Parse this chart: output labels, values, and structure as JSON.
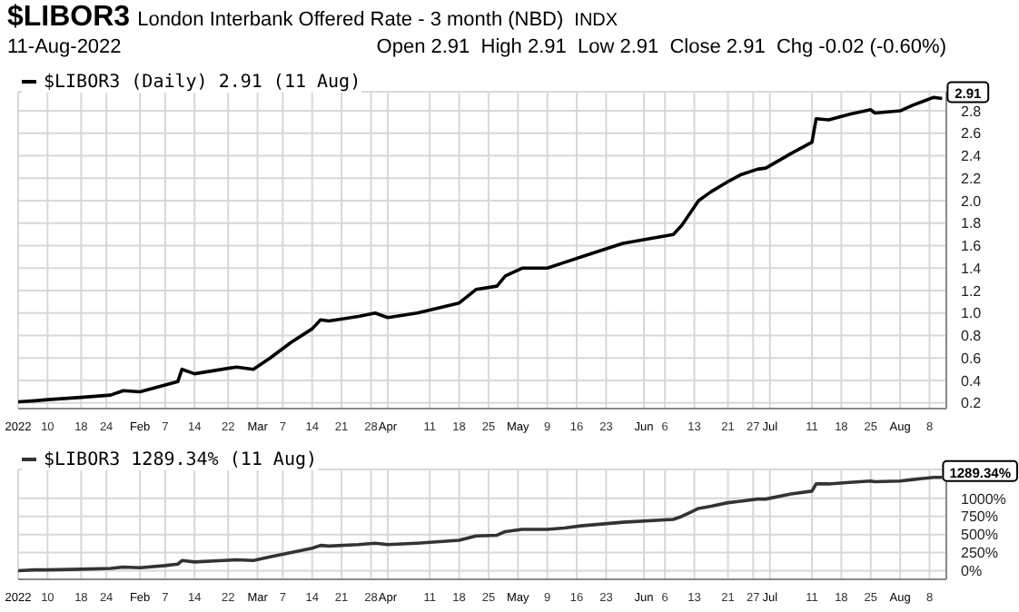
{
  "chart_data": [
    {
      "type": "line",
      "title": "$LIBOR3",
      "subtitle": "London Interbank Offered Rate - 3 month (NBD)",
      "annotations": [
        "INDX",
        "11-Aug-2022",
        "Open 2.91  High 2.91  Low 2.91  Close 2.91  Chg -0.02 (-0.60%)",
        {
          "text": "2.91",
          "x": "2022-08-11",
          "y": 2.91
        }
      ],
      "series": [
        {
          "name": "$LIBOR3 (Daily) 2.91 (11 Aug)",
          "color": "#000000",
          "x": [
            "2022-01-03",
            "2022-01-07",
            "2022-01-10",
            "2022-01-18",
            "2022-01-25",
            "2022-01-28",
            "2022-02-01",
            "2022-02-07",
            "2022-02-10",
            "2022-02-11",
            "2022-02-14",
            "2022-02-24",
            "2022-02-28",
            "2022-03-04",
            "2022-03-09",
            "2022-03-14",
            "2022-03-16",
            "2022-03-18",
            "2022-03-25",
            "2022-03-29",
            "2022-04-01",
            "2022-04-08",
            "2022-04-18",
            "2022-04-22",
            "2022-04-27",
            "2022-04-29",
            "2022-05-03",
            "2022-05-09",
            "2022-05-13",
            "2022-05-17",
            "2022-05-27",
            "2022-06-08",
            "2022-06-10",
            "2022-06-14",
            "2022-06-17",
            "2022-06-21",
            "2022-06-24",
            "2022-06-28",
            "2022-06-30",
            "2022-07-06",
            "2022-07-11",
            "2022-07-12",
            "2022-07-15",
            "2022-07-20",
            "2022-07-25",
            "2022-07-26",
            "2022-08-01",
            "2022-08-04",
            "2022-08-09",
            "2022-08-11"
          ],
          "values": [
            0.21,
            0.22,
            0.23,
            0.25,
            0.27,
            0.31,
            0.3,
            0.36,
            0.39,
            0.5,
            0.46,
            0.52,
            0.5,
            0.6,
            0.74,
            0.86,
            0.94,
            0.93,
            0.97,
            1.0,
            0.96,
            1.0,
            1.09,
            1.21,
            1.24,
            1.33,
            1.4,
            1.4,
            1.45,
            1.5,
            1.62,
            1.7,
            1.78,
            2.0,
            2.08,
            2.17,
            2.23,
            2.28,
            2.29,
            2.42,
            2.52,
            2.73,
            2.72,
            2.77,
            2.81,
            2.78,
            2.8,
            2.85,
            2.92,
            2.91
          ]
        }
      ],
      "xlim": [
        "2022-01-03",
        "2022-08-12"
      ],
      "xticks": [
        {
          "value": "2022-01-03",
          "label": "2022"
        },
        {
          "value": "2022-01-10",
          "label": "10"
        },
        {
          "value": "2022-01-18",
          "label": "18"
        },
        {
          "value": "2022-01-24",
          "label": "24"
        },
        {
          "value": "2022-02-01",
          "label": "Feb"
        },
        {
          "value": "2022-02-07",
          "label": "7"
        },
        {
          "value": "2022-02-14",
          "label": "14"
        },
        {
          "value": "2022-02-22",
          "label": "22"
        },
        {
          "value": "2022-03-01",
          "label": "Mar"
        },
        {
          "value": "2022-03-07",
          "label": "7"
        },
        {
          "value": "2022-03-14",
          "label": "14"
        },
        {
          "value": "2022-03-21",
          "label": "21"
        },
        {
          "value": "2022-03-28",
          "label": "28"
        },
        {
          "value": "2022-04-01",
          "label": "Apr"
        },
        {
          "value": "2022-04-11",
          "label": "11"
        },
        {
          "value": "2022-04-18",
          "label": "18"
        },
        {
          "value": "2022-04-25",
          "label": "25"
        },
        {
          "value": "2022-05-02",
          "label": "May"
        },
        {
          "value": "2022-05-09",
          "label": "9"
        },
        {
          "value": "2022-05-16",
          "label": "16"
        },
        {
          "value": "2022-05-23",
          "label": "23"
        },
        {
          "value": "2022-06-01",
          "label": "Jun"
        },
        {
          "value": "2022-06-06",
          "label": "6"
        },
        {
          "value": "2022-06-13",
          "label": "13"
        },
        {
          "value": "2022-06-21",
          "label": "21"
        },
        {
          "value": "2022-06-27",
          "label": "27"
        },
        {
          "value": "2022-07-01",
          "label": "Jul"
        },
        {
          "value": "2022-07-11",
          "label": "11"
        },
        {
          "value": "2022-07-18",
          "label": "18"
        },
        {
          "value": "2022-07-25",
          "label": "25"
        },
        {
          "value": "2022-08-01",
          "label": "Aug"
        },
        {
          "value": "2022-08-08",
          "label": "8"
        }
      ],
      "ylim": [
        0.15,
        2.97
      ],
      "yticks": [
        {
          "value": 0.2,
          "label": "0.2"
        },
        {
          "value": 0.4,
          "label": "0.4"
        },
        {
          "value": 0.6,
          "label": "0.6"
        },
        {
          "value": 0.8,
          "label": "0.8"
        },
        {
          "value": 1,
          "label": "1.0"
        },
        {
          "value": 1.2,
          "label": "1.2"
        },
        {
          "value": 1.4,
          "label": "1.4"
        },
        {
          "value": 1.6,
          "label": "1.6"
        },
        {
          "value": 1.8,
          "label": "1.8"
        },
        {
          "value": 2,
          "label": "2.0"
        },
        {
          "value": 2.2,
          "label": "2.2"
        },
        {
          "value": 2.4,
          "label": "2.4"
        },
        {
          "value": 2.6,
          "label": "2.6"
        },
        {
          "value": 2.8,
          "label": "2.8"
        }
      ],
      "grid": true,
      "legend": "top left",
      "marker": "none",
      "line_style": "solid"
    },
    {
      "type": "line",
      "annotations": [
        {
          "text": "1289.34%",
          "x": "2022-08-11",
          "y": 1289.34
        }
      ],
      "series": [
        {
          "name": "$LIBOR3 1289.34% (11 Aug)",
          "color": "#333333",
          "x": [
            "2022-01-03",
            "2022-01-07",
            "2022-01-10",
            "2022-01-18",
            "2022-01-25",
            "2022-01-28",
            "2022-02-01",
            "2022-02-07",
            "2022-02-10",
            "2022-02-11",
            "2022-02-14",
            "2022-02-24",
            "2022-02-28",
            "2022-03-04",
            "2022-03-09",
            "2022-03-14",
            "2022-03-16",
            "2022-03-18",
            "2022-03-25",
            "2022-03-29",
            "2022-04-01",
            "2022-04-08",
            "2022-04-18",
            "2022-04-22",
            "2022-04-27",
            "2022-04-29",
            "2022-05-03",
            "2022-05-09",
            "2022-05-13",
            "2022-05-17",
            "2022-05-27",
            "2022-06-08",
            "2022-06-10",
            "2022-06-14",
            "2022-06-17",
            "2022-06-21",
            "2022-06-24",
            "2022-06-28",
            "2022-06-30",
            "2022-07-06",
            "2022-07-11",
            "2022-07-12",
            "2022-07-15",
            "2022-07-20",
            "2022-07-25",
            "2022-07-26",
            "2022-08-01",
            "2022-08-04",
            "2022-08-09",
            "2022-08-11"
          ],
          "values": [
            0,
            10,
            10,
            20,
            30,
            50,
            40,
            70,
            90,
            140,
            120,
            150,
            140,
            190,
            250,
            310,
            350,
            340,
            360,
            380,
            360,
            380,
            420,
            480,
            490,
            540,
            570,
            570,
            590,
            620,
            670,
            710,
            750,
            860,
            890,
            940,
            960,
            990,
            990,
            1060,
            1100,
            1200,
            1200,
            1220,
            1240,
            1230,
            1240,
            1260,
            1290,
            1289.34
          ]
        }
      ],
      "xlim": [
        "2022-01-03",
        "2022-08-12"
      ],
      "xticks": [
        {
          "value": "2022-01-03",
          "label": "2022"
        },
        {
          "value": "2022-01-10",
          "label": "10"
        },
        {
          "value": "2022-01-18",
          "label": "18"
        },
        {
          "value": "2022-01-24",
          "label": "24"
        },
        {
          "value": "2022-02-01",
          "label": "Feb"
        },
        {
          "value": "2022-02-07",
          "label": "7"
        },
        {
          "value": "2022-02-14",
          "label": "14"
        },
        {
          "value": "2022-02-22",
          "label": "22"
        },
        {
          "value": "2022-03-01",
          "label": "Mar"
        },
        {
          "value": "2022-03-07",
          "label": "7"
        },
        {
          "value": "2022-03-14",
          "label": "14"
        },
        {
          "value": "2022-03-21",
          "label": "21"
        },
        {
          "value": "2022-03-28",
          "label": "28"
        },
        {
          "value": "2022-04-01",
          "label": "Apr"
        },
        {
          "value": "2022-04-11",
          "label": "11"
        },
        {
          "value": "2022-04-18",
          "label": "18"
        },
        {
          "value": "2022-04-25",
          "label": "25"
        },
        {
          "value": "2022-05-02",
          "label": "May"
        },
        {
          "value": "2022-05-09",
          "label": "9"
        },
        {
          "value": "2022-05-16",
          "label": "16"
        },
        {
          "value": "2022-05-23",
          "label": "23"
        },
        {
          "value": "2022-06-01",
          "label": "Jun"
        },
        {
          "value": "2022-06-06",
          "label": "6"
        },
        {
          "value": "2022-06-13",
          "label": "13"
        },
        {
          "value": "2022-06-21",
          "label": "21"
        },
        {
          "value": "2022-06-27",
          "label": "27"
        },
        {
          "value": "2022-07-01",
          "label": "Jul"
        },
        {
          "value": "2022-07-11",
          "label": "11"
        },
        {
          "value": "2022-07-18",
          "label": "18"
        },
        {
          "value": "2022-07-25",
          "label": "25"
        },
        {
          "value": "2022-08-01",
          "label": "Aug"
        },
        {
          "value": "2022-08-08",
          "label": "8"
        }
      ],
      "ylim": [
        -120,
        1400
      ],
      "yticks": [
        {
          "value": 0,
          "label": "0%"
        },
        {
          "value": 250,
          "label": "250%"
        },
        {
          "value": 500,
          "label": "500%"
        },
        {
          "value": 750,
          "label": "750%"
        },
        {
          "value": 1000,
          "label": "1000%"
        }
      ],
      "grid": true,
      "legend": "top left",
      "marker": "none",
      "line_style": "solid"
    }
  ]
}
